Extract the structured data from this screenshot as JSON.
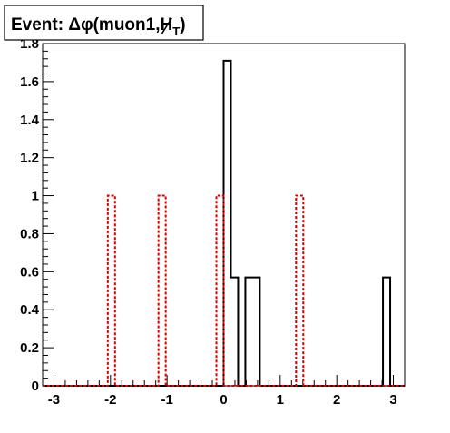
{
  "chart_data": {
    "type": "histogram",
    "title_prefix": "Event: ",
    "title_math": "Δφ(muon1,",
    "title_sym": "H",
    "title_sub": "T",
    "title_suffix": ")",
    "xlim": [
      -3.2,
      3.2
    ],
    "ylim": [
      0,
      1.8
    ],
    "bin_width": 0.128,
    "xticks": [
      -3,
      -2,
      -1,
      0,
      1,
      2,
      3
    ],
    "xtick_labels": [
      "-3",
      "-2",
      "-1",
      "0",
      "1",
      "2",
      "3"
    ],
    "yticks": [
      0,
      0.2,
      0.4,
      0.6,
      0.8,
      1,
      1.2,
      1.4,
      1.6,
      1.8
    ],
    "ytick_labels": [
      "0",
      "0.2",
      "0.4",
      "0.6",
      "0.8",
      "1",
      "1.2",
      "1.4",
      "1.6",
      "1.8"
    ],
    "series": [
      {
        "style": "solid",
        "color": "#000000",
        "bins": [
          {
            "x0": 0.0,
            "x1": 0.128,
            "y": 1.71
          },
          {
            "x0": 0.128,
            "x1": 0.256,
            "y": 0.57
          },
          {
            "x0": 0.384,
            "x1": 0.512,
            "y": 0.57
          },
          {
            "x0": 0.512,
            "x1": 0.64,
            "y": 0.57
          },
          {
            "x0": 2.816,
            "x1": 2.944,
            "y": 0.57
          }
        ]
      },
      {
        "style": "dashed",
        "color": "#dd0000",
        "bins": [
          {
            "x0": -2.048,
            "x1": -1.92,
            "y": 1.0
          },
          {
            "x0": -1.152,
            "x1": -1.024,
            "y": 1.0
          },
          {
            "x0": -0.128,
            "x1": 0.0,
            "y": 1.0
          },
          {
            "x0": 1.28,
            "x1": 1.408,
            "y": 1.0
          }
        ]
      }
    ]
  }
}
